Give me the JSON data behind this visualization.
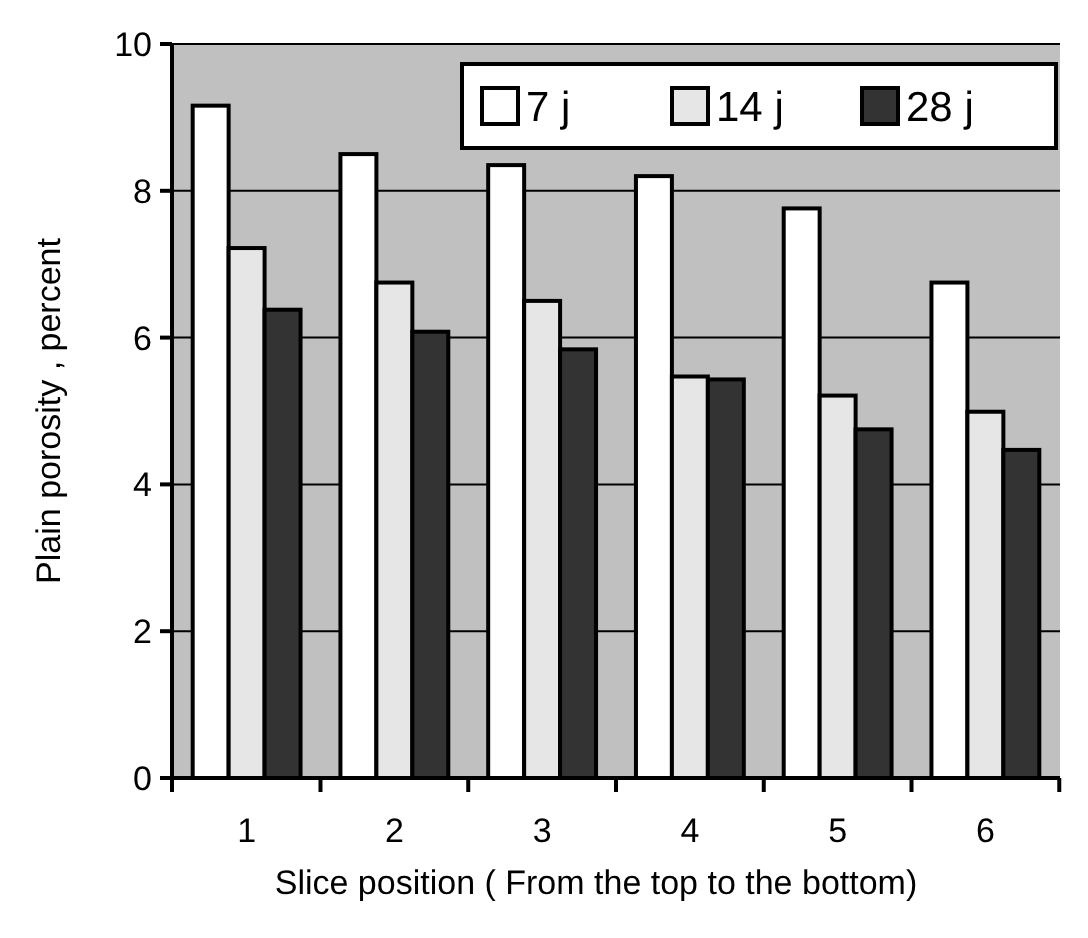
{
  "chart_data": {
    "type": "bar",
    "xlabel": "Slice position  ( From the top to the bottom)",
    "ylabel": "Plain porosity , percent",
    "categories": [
      "1",
      "2",
      "3",
      "4",
      "5",
      "6"
    ],
    "series": [
      {
        "name": "7 j",
        "color": "#ffffff",
        "values": [
          9.16,
          8.5,
          8.35,
          8.2,
          7.76,
          6.75
        ]
      },
      {
        "name": "14 j",
        "color": "#e6e6e6",
        "values": [
          7.22,
          6.75,
          6.5,
          5.47,
          5.21,
          4.99
        ]
      },
      {
        "name": "28 j",
        "color": "#333333",
        "values": [
          6.38,
          6.08,
          5.84,
          5.43,
          4.75,
          4.47
        ]
      }
    ],
    "ylim": [
      0,
      10
    ],
    "yticks": [
      0,
      2,
      4,
      6,
      8,
      10
    ],
    "grid": "y",
    "legend": "top right"
  }
}
